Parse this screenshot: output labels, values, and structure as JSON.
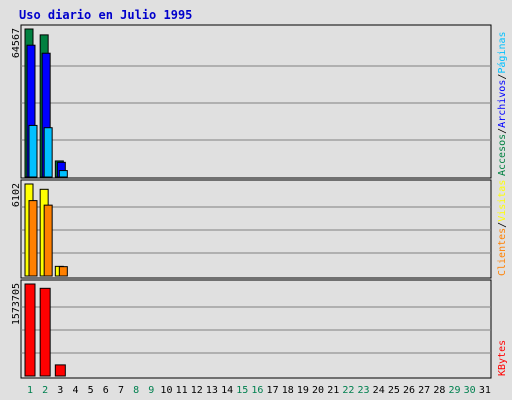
{
  "title": "Uso diario en Julio 1995",
  "chart_data": [
    {
      "type": "bar",
      "panel": "hits",
      "y_max_label": "64567",
      "ylim": [
        0,
        64567
      ],
      "grid": true,
      "categories": [
        "1",
        "2",
        "3",
        "4",
        "5",
        "6",
        "7",
        "8",
        "9",
        "10",
        "11",
        "12",
        "13",
        "14",
        "15",
        "16",
        "17",
        "18",
        "19",
        "20",
        "21",
        "22",
        "23",
        "24",
        "25",
        "26",
        "27",
        "28",
        "29",
        "30",
        "31"
      ],
      "series": [
        {
          "name": "Accesos",
          "color": "#008040",
          "values": [
            64567,
            62000,
            7000,
            0,
            0,
            0,
            0,
            0,
            0,
            0,
            0,
            0,
            0,
            0,
            0,
            0,
            0,
            0,
            0,
            0,
            0,
            0,
            0,
            0,
            0,
            0,
            0,
            0,
            0,
            0,
            0
          ]
        },
        {
          "name": "Archivos",
          "color": "#0000ff",
          "values": [
            57500,
            54000,
            6400,
            0,
            0,
            0,
            0,
            0,
            0,
            0,
            0,
            0,
            0,
            0,
            0,
            0,
            0,
            0,
            0,
            0,
            0,
            0,
            0,
            0,
            0,
            0,
            0,
            0,
            0,
            0,
            0
          ]
        },
        {
          "name": "Páginas",
          "color": "#00c0ff",
          "values": [
            22500,
            21500,
            2800,
            0,
            0,
            0,
            0,
            0,
            0,
            0,
            0,
            0,
            0,
            0,
            0,
            0,
            0,
            0,
            0,
            0,
            0,
            0,
            0,
            0,
            0,
            0,
            0,
            0,
            0,
            0,
            0
          ]
        }
      ],
      "legend": [
        {
          "text": "Accesos",
          "color": "#008040"
        },
        {
          "text": "Archivos",
          "color": "#0000ff"
        },
        {
          "text": "Páginas",
          "color": "#00c0ff"
        }
      ]
    },
    {
      "type": "bar",
      "panel": "visits",
      "y_max_label": "6102",
      "ylim": [
        0,
        6102
      ],
      "grid": true,
      "series": [
        {
          "name": "Visitas",
          "color": "#ffff00",
          "values": [
            6102,
            5750,
            640,
            0,
            0,
            0,
            0,
            0,
            0,
            0,
            0,
            0,
            0,
            0,
            0,
            0,
            0,
            0,
            0,
            0,
            0,
            0,
            0,
            0,
            0,
            0,
            0,
            0,
            0,
            0,
            0
          ]
        },
        {
          "name": "Clientes",
          "color": "#ff8000",
          "values": [
            5000,
            4700,
            620,
            0,
            0,
            0,
            0,
            0,
            0,
            0,
            0,
            0,
            0,
            0,
            0,
            0,
            0,
            0,
            0,
            0,
            0,
            0,
            0,
            0,
            0,
            0,
            0,
            0,
            0,
            0,
            0
          ]
        }
      ],
      "legend": [
        {
          "text": "Clientes",
          "color": "#ff8000"
        },
        {
          "text": "Visitas",
          "color": "#ffff00"
        }
      ]
    },
    {
      "type": "bar",
      "panel": "kbytes",
      "y_max_label": "1573705",
      "ylim": [
        0,
        1573705
      ],
      "grid": true,
      "series": [
        {
          "name": "KBytes",
          "color": "#ff0000",
          "values": [
            1573705,
            1500000,
            190000,
            0,
            0,
            0,
            0,
            0,
            0,
            0,
            0,
            0,
            0,
            0,
            0,
            0,
            0,
            0,
            0,
            0,
            0,
            0,
            0,
            0,
            0,
            0,
            0,
            0,
            0,
            0,
            0
          ]
        }
      ],
      "legend": [
        {
          "text": "KBytes",
          "color": "#ff0000"
        }
      ]
    }
  ],
  "weekend_days": [
    "1",
    "2",
    "8",
    "9",
    "15",
    "16",
    "22",
    "23",
    "29",
    "30"
  ],
  "colors": {
    "title": "#0000cc",
    "weekend": "#00804f",
    "weekday": "#000000",
    "grid": "#808080",
    "panel": "#e0e0e0"
  }
}
